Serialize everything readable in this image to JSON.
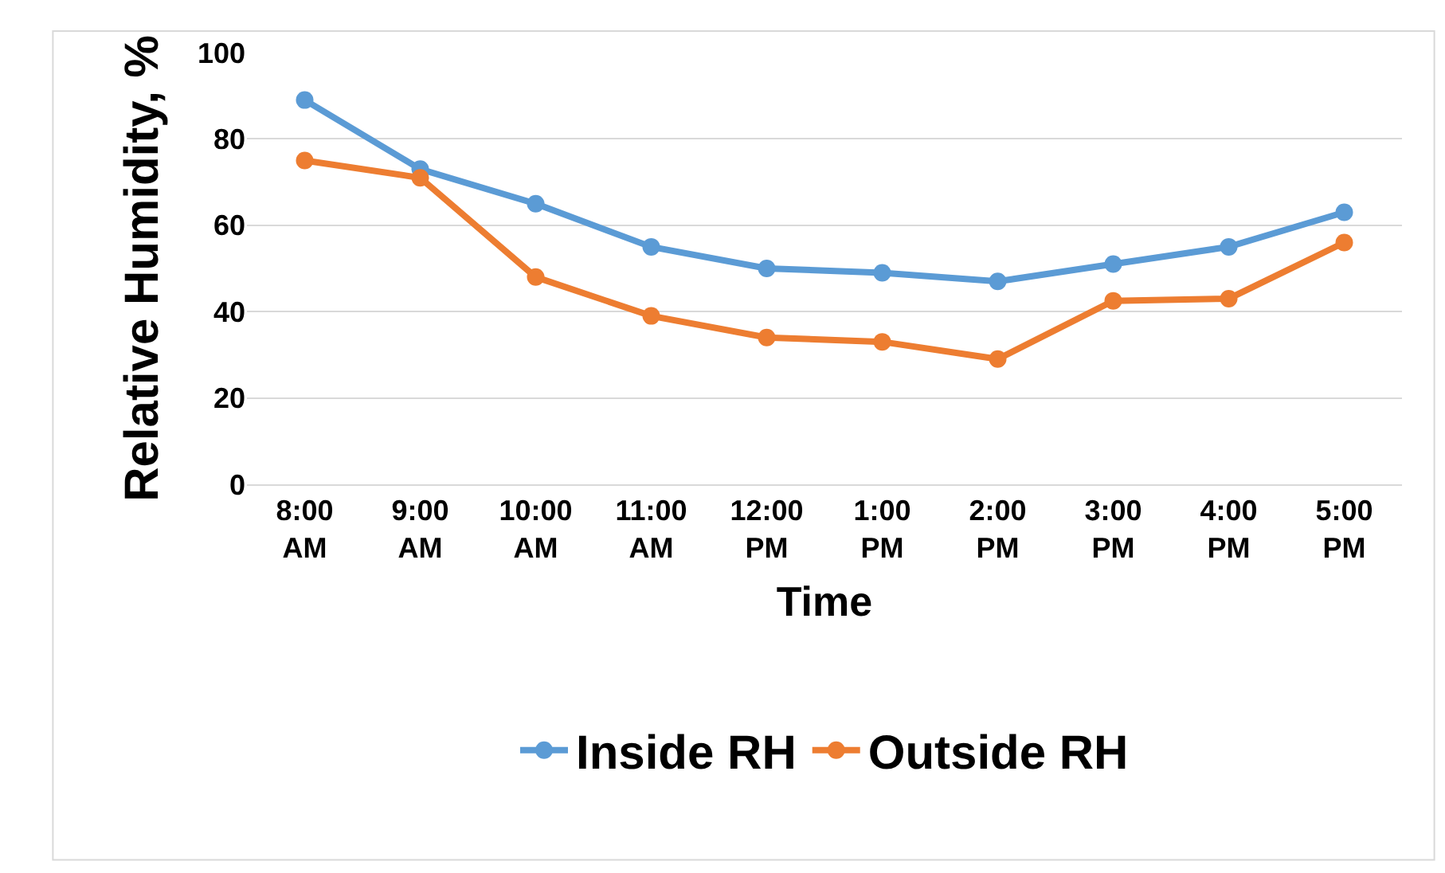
{
  "chart_data": {
    "type": "line",
    "xlabel": "Time",
    "ylabel": "Relative Humidity, %",
    "categories": [
      "8:00 AM",
      "9:00 AM",
      "10:00 AM",
      "11:00 AM",
      "12:00 PM",
      "1:00 PM",
      "2:00 PM",
      "3:00 PM",
      "4:00 PM",
      "5:00 PM"
    ],
    "series": [
      {
        "name": "Inside RH",
        "color": "#5b9bd5",
        "values": [
          89,
          73,
          65,
          55,
          50,
          49,
          47,
          51,
          55,
          63
        ]
      },
      {
        "name": "Outside RH",
        "color": "#ed7d31",
        "values": [
          75,
          71,
          48,
          39,
          34,
          33,
          29,
          42.5,
          43,
          56
        ]
      }
    ],
    "ylim": [
      0,
      100
    ],
    "yticks": [
      0,
      20,
      40,
      60,
      80,
      100
    ],
    "grid": "y",
    "legend": "bottom",
    "marker": "circle",
    "line_style": "solid"
  }
}
